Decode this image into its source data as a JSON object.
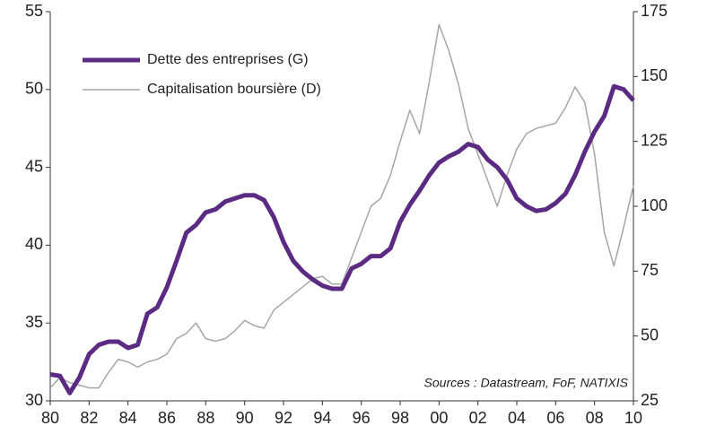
{
  "chart_data": {
    "type": "line",
    "x": [
      1980,
      1980.5,
      1981,
      1981.5,
      1982,
      1982.5,
      1983,
      1983.5,
      1984,
      1984.5,
      1985,
      1985.5,
      1986,
      1986.5,
      1987,
      1987.5,
      1988,
      1988.5,
      1989,
      1989.5,
      1990,
      1990.5,
      1991,
      1991.5,
      1992,
      1992.5,
      1993,
      1993.5,
      1994,
      1994.5,
      1995,
      1995.5,
      1996,
      1996.5,
      1997,
      1997.5,
      1998,
      1998.5,
      1999,
      1999.5,
      2000,
      2000.5,
      2001,
      2001.5,
      2002,
      2002.5,
      2003,
      2003.5,
      2004,
      2004.5,
      2005,
      2005.5,
      2006,
      2006.5,
      2007,
      2007.5,
      2008,
      2008.5,
      2009,
      2009.5,
      2010
    ],
    "series": [
      {
        "name": "Dette des entreprises (G)",
        "color": "#5b2a83",
        "values": [
          31.7,
          31.6,
          30.5,
          31.5,
          33,
          33.6,
          33.8,
          33.8,
          33.4,
          33.6,
          35.6,
          36,
          37.3,
          39,
          40.8,
          41.3,
          42.1,
          42.3,
          42.8,
          43,
          43.2,
          43.2,
          42.9,
          41.8,
          40.2,
          39,
          38.3,
          37.8,
          37.4,
          37.2,
          37.2,
          38.5,
          38.8,
          39.3,
          39.3,
          39.8,
          41.5,
          42.6,
          43.5,
          44.5,
          45.3,
          45.7,
          46,
          46.5,
          46.3,
          45.5,
          45,
          44.2,
          43,
          42.5,
          42.2,
          42.3,
          42.7,
          43.3,
          44.5,
          46,
          47.3,
          48.3,
          50.2,
          50,
          49.3
        ]
      },
      {
        "name": "Capitalisation boursière (D)",
        "color": "#a6a6a6",
        "axis": "y2",
        "values": [
          30,
          34,
          32,
          31,
          30,
          30,
          36,
          41,
          40,
          38,
          40,
          41,
          43,
          49,
          51,
          55,
          49,
          48,
          49,
          52,
          56,
          54,
          53,
          60,
          63,
          66,
          69,
          72,
          73,
          70,
          70,
          80,
          90,
          100,
          103,
          112,
          125,
          137,
          128,
          148,
          170,
          160,
          147,
          130,
          120,
          110,
          100,
          112,
          122,
          128,
          130,
          131,
          132,
          138,
          146,
          140,
          120,
          90,
          77,
          92,
          108
        ]
      }
    ],
    "xlim": [
      1980,
      2010
    ],
    "xticks": [
      {
        "value": 1980,
        "label": "80"
      },
      {
        "value": 1982,
        "label": "82"
      },
      {
        "value": 1984,
        "label": "84"
      },
      {
        "value": 1986,
        "label": "86"
      },
      {
        "value": 1988,
        "label": "88"
      },
      {
        "value": 1990,
        "label": "90"
      },
      {
        "value": 1992,
        "label": "92"
      },
      {
        "value": 1994,
        "label": "94"
      },
      {
        "value": 1996,
        "label": "96"
      },
      {
        "value": 1998,
        "label": "98"
      },
      {
        "value": 2000,
        "label": "00"
      },
      {
        "value": 2002,
        "label": "02"
      },
      {
        "value": 2004,
        "label": "04"
      },
      {
        "value": 2006,
        "label": "06"
      },
      {
        "value": 2008,
        "label": "08"
      },
      {
        "value": 2010,
        "label": "10"
      }
    ],
    "ylim": [
      30,
      55
    ],
    "yticks": [
      30,
      35,
      40,
      45,
      50,
      55
    ],
    "y2lim": [
      25,
      175
    ],
    "y2ticks": [
      25,
      50,
      75,
      100,
      125,
      150,
      175
    ],
    "annotation": "Sources : Datastream, FoF, NATIXIS"
  }
}
